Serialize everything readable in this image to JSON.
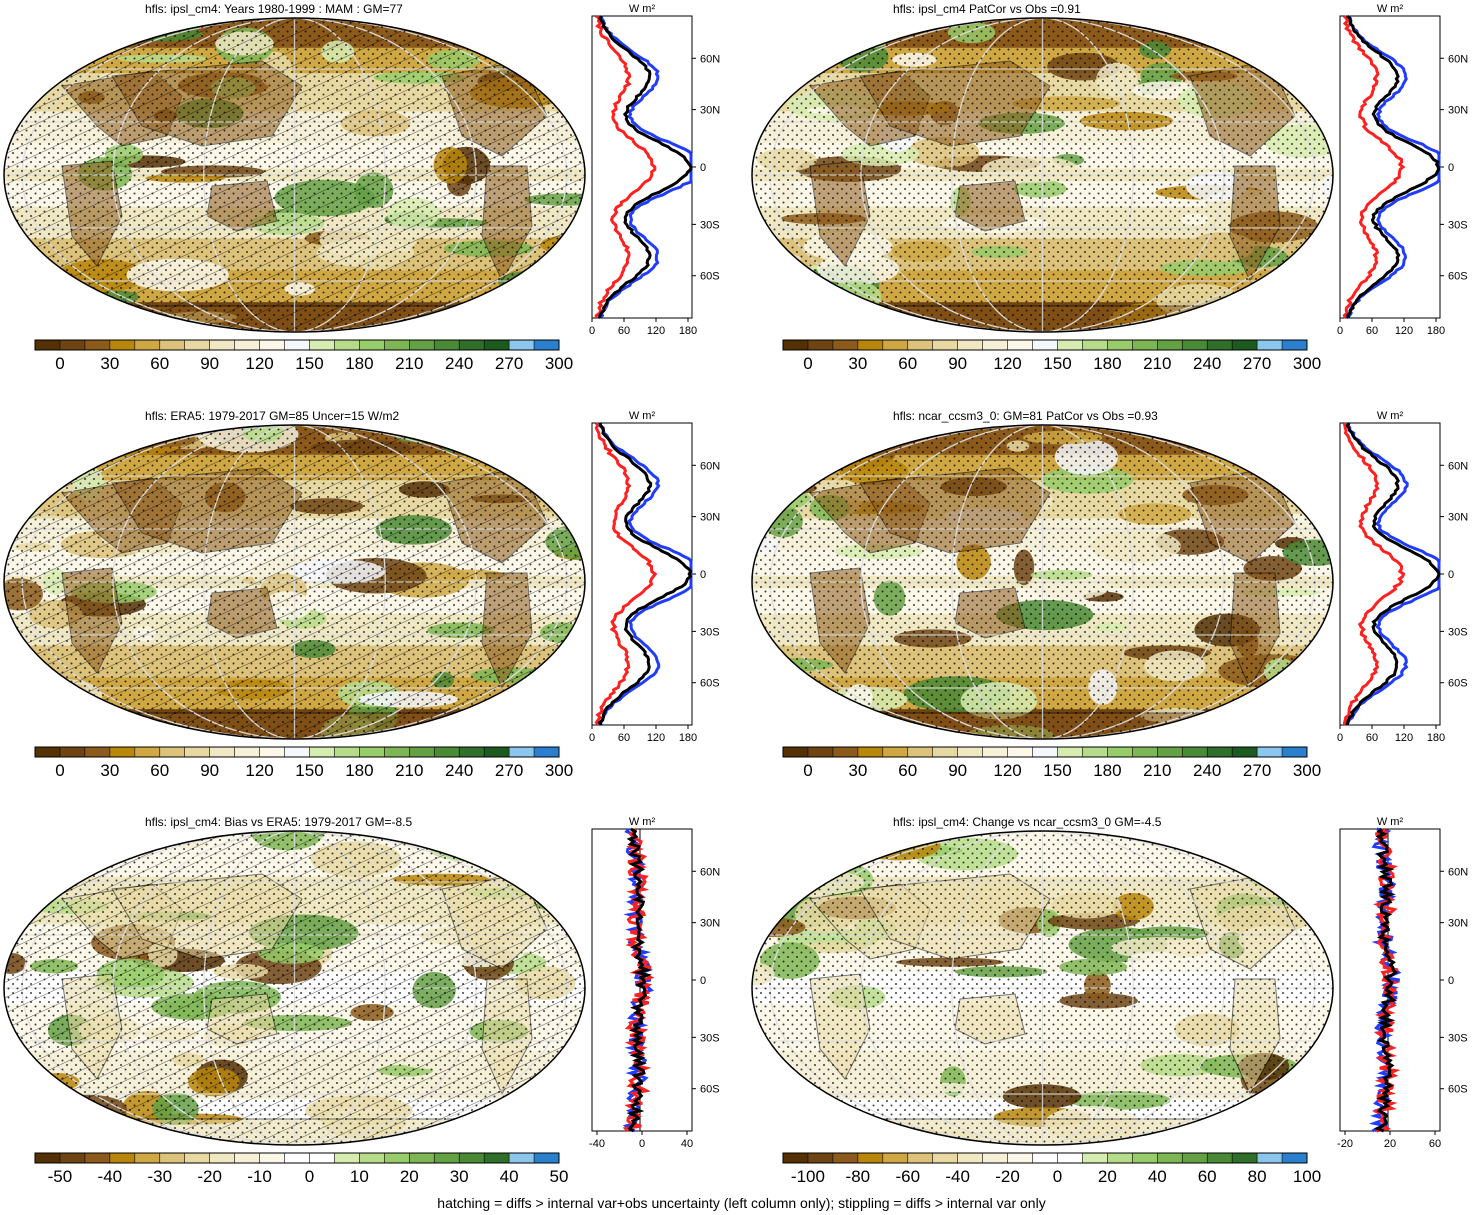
{
  "panels": [
    {
      "title": "hfls: ipsl_cm4: Years 1980-1999 : MAM : GM=77",
      "kind": "mean",
      "hatch": true,
      "cbar_labels": [
        "0",
        "30",
        "60",
        "90",
        "120",
        "150",
        "180",
        "210",
        "240",
        "270",
        "300"
      ],
      "zonal_xticks": [
        "0",
        "60",
        "120",
        "180"
      ],
      "zonal_lat_labels": [
        "60N",
        "30N",
        "0",
        "30S",
        "60S"
      ],
      "zonal_unit": "W m²"
    },
    {
      "title": "hfls: ipsl_cm4 PatCor vs Obs =0.91",
      "kind": "mean",
      "hatch": false,
      "cbar_labels": [
        "0",
        "30",
        "60",
        "90",
        "120",
        "150",
        "180",
        "210",
        "240",
        "270",
        "300"
      ],
      "zonal_xticks": [
        "0",
        "60",
        "120",
        "180"
      ],
      "zonal_lat_labels": [
        "60N",
        "30N",
        "0",
        "30S",
        "60S"
      ],
      "zonal_unit": "W m²"
    },
    {
      "title": "hfls: ERA5: 1979-2017 GM=85 Uncer=15 W/m2",
      "kind": "mean",
      "hatch": true,
      "cbar_labels": [
        "0",
        "30",
        "60",
        "90",
        "120",
        "150",
        "180",
        "210",
        "240",
        "270",
        "300"
      ],
      "zonal_xticks": [
        "0",
        "60",
        "120",
        "180"
      ],
      "zonal_lat_labels": [
        "60N",
        "30N",
        "0",
        "30S",
        "60S"
      ],
      "zonal_unit": "W m²"
    },
    {
      "title": "hfls: ncar_ccsm3_0: GM=81 PatCor vs Obs =0.93",
      "kind": "mean",
      "hatch": false,
      "cbar_labels": [
        "0",
        "30",
        "60",
        "90",
        "120",
        "150",
        "180",
        "210",
        "240",
        "270",
        "300"
      ],
      "zonal_xticks": [
        "0",
        "60",
        "120",
        "180"
      ],
      "zonal_lat_labels": [
        "60N",
        "30N",
        "0",
        "30S",
        "60S"
      ],
      "zonal_unit": "W m²"
    },
    {
      "title": "hfls: ipsl_cm4: Bias vs ERA5: 1979-2017 GM=-8.5",
      "kind": "diff",
      "hatch": true,
      "cbar_labels": [
        "-50",
        "-40",
        "-30",
        "-20",
        "-10",
        "0",
        "10",
        "20",
        "30",
        "40",
        "50"
      ],
      "zonal_xticks": [
        "-40",
        "0",
        "40"
      ],
      "zonal_lat_labels": [
        "60N",
        "30N",
        "0",
        "30S",
        "60S"
      ],
      "zonal_unit": "W m²"
    },
    {
      "title": "hfls: ipsl_cm4: Change vs ncar_ccsm3_0 GM=-4.5",
      "kind": "diff",
      "hatch": false,
      "cbar_labels": [
        "-100",
        "-80",
        "-60",
        "-40",
        "-20",
        "0",
        "20",
        "40",
        "60",
        "80",
        "100"
      ],
      "zonal_xticks": [
        "-20",
        "20",
        "60"
      ],
      "zonal_lat_labels": [
        "60N",
        "30N",
        "0",
        "30S",
        "60S"
      ],
      "zonal_unit": "W m²"
    }
  ],
  "colors": {
    "mean_scale": [
      "#543005",
      "#6f4413",
      "#8c5a1a",
      "#b8860b",
      "#cfa844",
      "#dcc27a",
      "#e8d9a3",
      "#f0e8c2",
      "#f6f0d8",
      "#fbf8ea",
      "#f4f7fb",
      "#d7ecb0",
      "#b6dc8a",
      "#98cb6a",
      "#7fb655",
      "#64a044",
      "#4a8a36",
      "#2f6f2a",
      "#1c5a1f",
      "#8cc6ec",
      "#2a7fcf"
    ],
    "diff_scale": [
      "#543005",
      "#6f4413",
      "#8c5a1a",
      "#b8860b",
      "#cfa844",
      "#dcc27a",
      "#e8d9a3",
      "#f0e8c2",
      "#f6f0d8",
      "#fbf8ea",
      "#ffffff",
      "#ffffff",
      "#d7ecb0",
      "#b6dc8a",
      "#98cb6a",
      "#7fb655",
      "#64a044",
      "#4a8a36",
      "#2f6f2a",
      "#8cc6ec",
      "#2a7fcf"
    ],
    "zonal_model": "#000000",
    "zonal_obs": "#1f3cff",
    "zonal_diff": "#ff2020"
  },
  "footer": "hatching = diffs > internal var+obs uncertainty (left column only); stippling = diffs > internal var only"
}
